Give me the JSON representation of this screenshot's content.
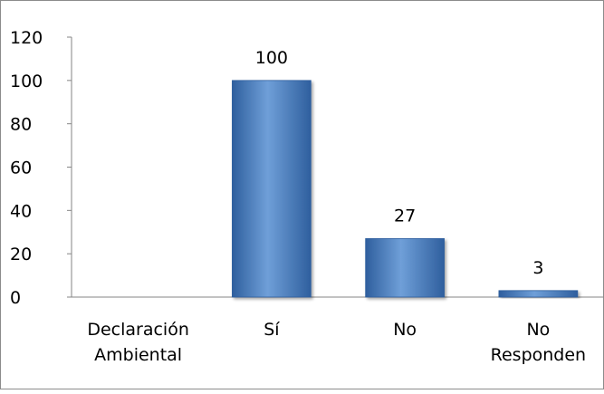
{
  "chart_data": {
    "type": "bar",
    "categories": [
      "Declaración Ambiental",
      "Sí",
      "No",
      "No Responden"
    ],
    "category_label_lines": [
      [
        "Declaración",
        "Ambiental"
      ],
      [
        "Sí"
      ],
      [
        "No"
      ],
      [
        "No",
        "Responden"
      ]
    ],
    "values": [
      null,
      100,
      27,
      3
    ],
    "data_labels": [
      "",
      "100",
      "27",
      "3"
    ],
    "y_ticks": [
      "0",
      "20",
      "40",
      "60",
      "80",
      "100",
      "120"
    ],
    "ylim": [
      0,
      120
    ],
    "grid": false,
    "legend": "none",
    "bar_color": "#4a7ebb",
    "bar_color_light": "#6f9fd8",
    "bar_color_dark": "#2f5f9e"
  }
}
